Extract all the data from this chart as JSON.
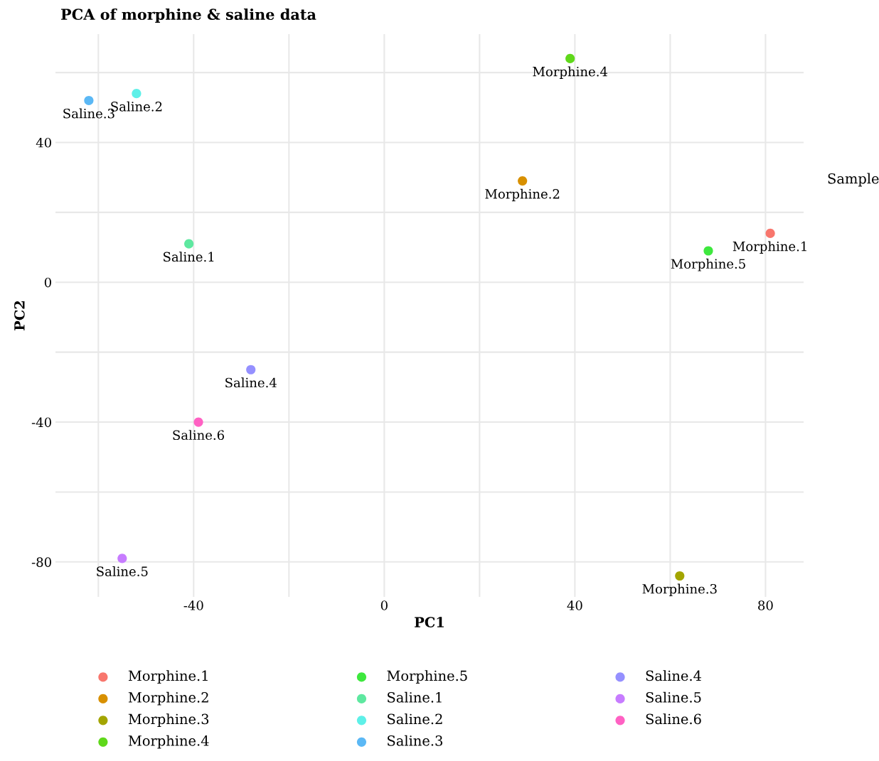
{
  "chart_data": {
    "type": "scatter",
    "title": "PCA of morphine & saline data",
    "xlabel": "PC1",
    "ylabel": "PC2",
    "legend_title": "Sample",
    "xlim": [
      -69,
      88
    ],
    "ylim": [
      -90,
      71
    ],
    "xticks": [
      {
        "value": -60,
        "label": null
      },
      -40,
      {
        "value": -20,
        "label": null
      },
      0,
      {
        "value": 20,
        "label": null
      },
      40,
      {
        "value": 60,
        "label": null
      },
      80
    ],
    "yticks": [
      {
        "value": -80,
        "label": "-80"
      },
      {
        "value": -60,
        "label": null
      },
      {
        "value": -40,
        "label": "-40"
      },
      {
        "value": -20,
        "label": null
      },
      0,
      {
        "value": 20,
        "label": null
      },
      40,
      {
        "value": 60,
        "label": null
      }
    ],
    "grid": true,
    "legend": "bottom",
    "marker": "circle",
    "series": [
      {
        "name": "Morphine.1",
        "color": "#f8766d",
        "x": [
          81
        ],
        "values": [
          14
        ]
      },
      {
        "name": "Morphine.2",
        "color": "#d89000",
        "x": [
          29
        ],
        "values": [
          29
        ]
      },
      {
        "name": "Morphine.3",
        "color": "#a3a500",
        "x": [
          62
        ],
        "values": [
          -84
        ]
      },
      {
        "name": "Morphine.4",
        "color": "#5fd81a",
        "x": [
          39
        ],
        "values": [
          64
        ]
      },
      {
        "name": "Morphine.5",
        "color": "#3ee83e",
        "x": [
          68
        ],
        "values": [
          9
        ]
      },
      {
        "name": "Saline.1",
        "color": "#5ee8a0",
        "x": [
          -41
        ],
        "values": [
          11
        ]
      },
      {
        "name": "Saline.2",
        "color": "#5ef0e8",
        "x": [
          -52
        ],
        "values": [
          54
        ]
      },
      {
        "name": "Saline.3",
        "color": "#5bb8f5",
        "x": [
          -62
        ],
        "values": [
          52
        ]
      },
      {
        "name": "Saline.4",
        "color": "#9590ff",
        "x": [
          -28
        ],
        "values": [
          -25
        ]
      },
      {
        "name": "Saline.5",
        "color": "#c77cff",
        "x": [
          -55
        ],
        "values": [
          -79
        ]
      },
      {
        "name": "Saline.6",
        "color": "#ff61c3",
        "x": [
          -39
        ],
        "values": [
          -40
        ]
      }
    ]
  }
}
